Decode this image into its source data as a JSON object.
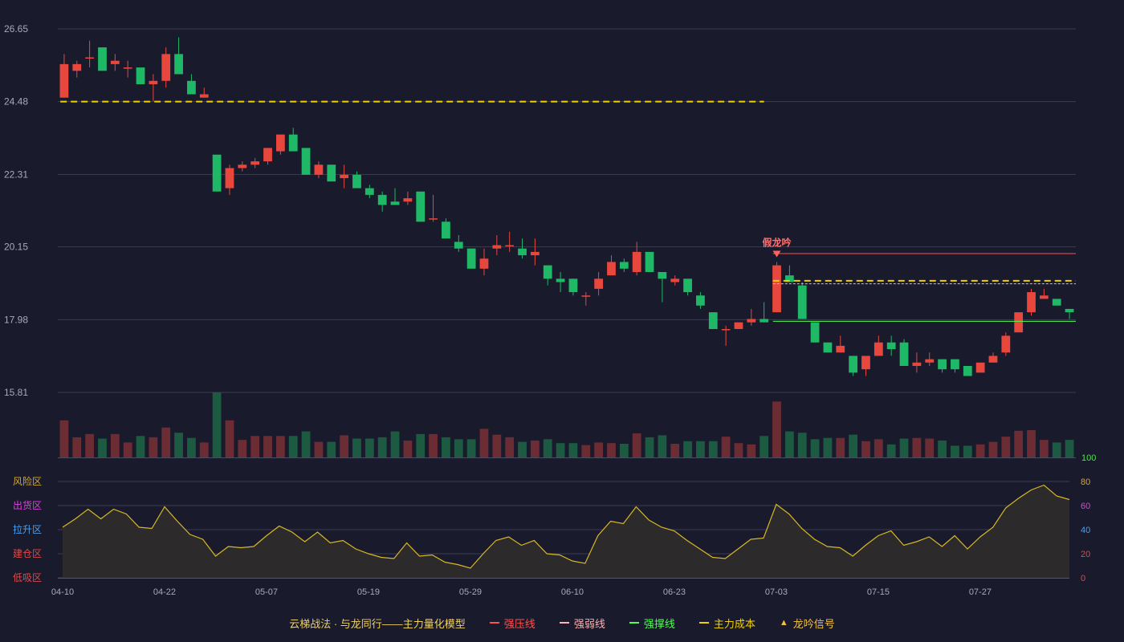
{
  "chart_data": {
    "type": "candlestick",
    "price_axis": {
      "ticks": [
        26.65,
        24.48,
        22.31,
        20.15,
        17.98,
        15.81
      ],
      "range": [
        15.81,
        26.65
      ]
    },
    "x_tick_labels": [
      {
        "i": 0,
        "label": "04-10"
      },
      {
        "i": 8,
        "label": "04-22"
      },
      {
        "i": 16,
        "label": "05-07"
      },
      {
        "i": 24,
        "label": "05-19"
      },
      {
        "i": 32,
        "label": "05-29"
      },
      {
        "i": 40,
        "label": "06-10"
      },
      {
        "i": 48,
        "label": "06-23"
      },
      {
        "i": 56,
        "label": "07-03"
      },
      {
        "i": 64,
        "label": "07-15"
      },
      {
        "i": 72,
        "label": "07-27"
      }
    ],
    "candles": [
      [
        24.6,
        25.6,
        25.9,
        24.6
      ],
      [
        25.4,
        25.6,
        25.7,
        25.2
      ],
      [
        25.8,
        25.8,
        26.3,
        25.5
      ],
      [
        26.1,
        25.4,
        26.1,
        25.4
      ],
      [
        25.6,
        25.7,
        25.9,
        25.4
      ],
      [
        25.5,
        25.5,
        25.7,
        25.2
      ],
      [
        25.5,
        25.0,
        25.5,
        25.0
      ],
      [
        25.0,
        25.1,
        25.3,
        24.5
      ],
      [
        25.1,
        25.9,
        26.1,
        24.9
      ],
      [
        25.9,
        25.3,
        26.4,
        25.3
      ],
      [
        25.1,
        24.7,
        25.3,
        24.7
      ],
      [
        24.6,
        24.7,
        24.9,
        24.6
      ],
      [
        22.9,
        21.8,
        22.9,
        21.8
      ],
      [
        21.9,
        22.5,
        22.6,
        21.7
      ],
      [
        22.5,
        22.6,
        22.7,
        22.4
      ],
      [
        22.6,
        22.7,
        22.8,
        22.5
      ],
      [
        22.7,
        23.1,
        23.1,
        22.6
      ],
      [
        23.0,
        23.5,
        23.5,
        22.9
      ],
      [
        23.5,
        23.0,
        23.7,
        23.0
      ],
      [
        23.1,
        22.3,
        23.1,
        22.3
      ],
      [
        22.3,
        22.6,
        22.7,
        22.2
      ],
      [
        22.6,
        22.1,
        22.6,
        22.1
      ],
      [
        22.2,
        22.3,
        22.6,
        21.9
      ],
      [
        22.3,
        21.9,
        22.4,
        21.9
      ],
      [
        21.9,
        21.7,
        22.0,
        21.6
      ],
      [
        21.7,
        21.4,
        21.8,
        21.2
      ],
      [
        21.5,
        21.4,
        21.9,
        21.4
      ],
      [
        21.5,
        21.6,
        21.8,
        21.4
      ],
      [
        21.8,
        20.9,
        21.8,
        20.9
      ],
      [
        21.0,
        21.0,
        21.7,
        20.9
      ],
      [
        20.9,
        20.4,
        21.0,
        20.4
      ],
      [
        20.3,
        20.1,
        20.5,
        20.0
      ],
      [
        20.1,
        19.5,
        20.1,
        19.5
      ],
      [
        19.5,
        19.8,
        20.1,
        19.3
      ],
      [
        20.1,
        20.2,
        20.5,
        19.9
      ],
      [
        20.2,
        20.2,
        20.6,
        20.0
      ],
      [
        20.1,
        19.9,
        20.4,
        19.8
      ],
      [
        19.9,
        20.0,
        20.4,
        19.6
      ],
      [
        19.6,
        19.2,
        19.6,
        19.0
      ],
      [
        19.2,
        19.1,
        19.4,
        18.8
      ],
      [
        19.2,
        18.8,
        19.2,
        18.7
      ],
      [
        18.7,
        18.7,
        18.8,
        18.4
      ],
      [
        18.9,
        19.2,
        19.4,
        18.7
      ],
      [
        19.3,
        19.7,
        19.9,
        19.3
      ],
      [
        19.7,
        19.5,
        19.8,
        19.4
      ],
      [
        19.4,
        20.0,
        20.3,
        19.3
      ],
      [
        20.0,
        19.4,
        20.0,
        19.4
      ],
      [
        19.4,
        19.2,
        19.4,
        18.5
      ],
      [
        19.1,
        19.2,
        19.3,
        19.0
      ],
      [
        19.2,
        18.8,
        19.2,
        18.7
      ],
      [
        18.7,
        18.4,
        18.8,
        18.3
      ],
      [
        18.2,
        17.7,
        18.2,
        17.7
      ],
      [
        17.7,
        17.7,
        17.8,
        17.2
      ],
      [
        17.7,
        17.9,
        17.9,
        17.7
      ],
      [
        17.9,
        18.0,
        18.3,
        17.8
      ],
      [
        18.0,
        17.9,
        18.5,
        17.9
      ],
      [
        18.2,
        19.6,
        19.7,
        18.2
      ],
      [
        19.3,
        19.1,
        19.6,
        19.1
      ],
      [
        19.0,
        18.0,
        19.1,
        18.0
      ],
      [
        17.9,
        17.3,
        17.9,
        17.3
      ],
      [
        17.3,
        17.0,
        17.3,
        17.0
      ],
      [
        17.0,
        17.2,
        17.5,
        17.0
      ],
      [
        16.9,
        16.4,
        16.9,
        16.3
      ],
      [
        16.5,
        16.9,
        16.9,
        16.3
      ],
      [
        16.9,
        17.3,
        17.5,
        16.9
      ],
      [
        17.3,
        17.1,
        17.5,
        16.9
      ],
      [
        17.3,
        16.6,
        17.4,
        16.6
      ],
      [
        16.6,
        16.7,
        17.0,
        16.4
      ],
      [
        16.7,
        16.8,
        17.0,
        16.6
      ],
      [
        16.8,
        16.5,
        16.8,
        16.4
      ],
      [
        16.8,
        16.5,
        16.8,
        16.4
      ],
      [
        16.6,
        16.3,
        16.6,
        16.3
      ],
      [
        16.4,
        16.7,
        16.7,
        16.4
      ],
      [
        16.7,
        16.9,
        17.0,
        16.7
      ],
      [
        17.0,
        17.5,
        17.6,
        16.9
      ],
      [
        17.6,
        18.2,
        18.2,
        17.6
      ],
      [
        18.2,
        18.8,
        18.9,
        18.1
      ],
      [
        18.6,
        18.7,
        18.9,
        18.6
      ],
      [
        18.6,
        18.4,
        18.6,
        18.4
      ],
      [
        18.3,
        18.2,
        18.3,
        18.0
      ]
    ],
    "volume": {
      "axis_top_label": "100",
      "values": [
        57,
        31,
        36,
        29,
        36,
        23,
        33,
        31,
        46,
        38,
        30,
        23,
        100,
        57,
        27,
        33,
        33,
        33,
        33,
        40,
        24,
        24,
        34,
        29,
        29,
        31,
        40,
        26,
        36,
        36,
        31,
        28,
        28,
        44,
        35,
        31,
        24,
        26,
        28,
        22,
        22,
        19,
        23,
        22,
        21,
        37,
        31,
        34,
        21,
        25,
        25,
        25,
        32,
        22,
        20,
        33,
        86,
        40,
        38,
        28,
        30,
        30,
        35,
        25,
        28,
        20,
        29,
        30,
        29,
        26,
        18,
        18,
        20,
        24,
        32,
        41,
        42,
        27,
        23,
        27
      ]
    },
    "zones": [
      "风险区",
      "出货区",
      "拉升区",
      "建仓区",
      "低吸区"
    ],
    "zone_colors": [
      "#d8a62a",
      "#e040e0",
      "#4aa0f0",
      "#e04848",
      "#e04848"
    ],
    "indicator_axis": {
      "ticks": [
        80,
        60,
        40,
        20,
        0
      ],
      "colors": [
        "#d8a62a",
        "#e040e0",
        "#4aa0f0",
        "#e04848",
        "#e04848"
      ]
    },
    "indicator": [
      42,
      49,
      57,
      49,
      57,
      53,
      42,
      41,
      59,
      47,
      36,
      32,
      18,
      26,
      25,
      26,
      35,
      43,
      38,
      30,
      38,
      29,
      31,
      24,
      20,
      17,
      16,
      29,
      18,
      19,
      13,
      11,
      8,
      20,
      31,
      34,
      27,
      31,
      20,
      19,
      14,
      12,
      35,
      47,
      45,
      59,
      48,
      42,
      39,
      31,
      24,
      17,
      16,
      24,
      32,
      33,
      61,
      53,
      41,
      32,
      26,
      25,
      18,
      27,
      35,
      39,
      27,
      30,
      34,
      26,
      35,
      24,
      34,
      42,
      58,
      66,
      73,
      77,
      68,
      65
    ],
    "levels": {
      "cost_early": {
        "value": 24.48,
        "from": 0,
        "to": 55
      },
      "strong_pressure": {
        "value": 19.95,
        "from": 56,
        "to": 79
      },
      "main_cost_late": {
        "value": 19.14,
        "from": 56,
        "to": 79
      },
      "weak": {
        "value": 19.05,
        "from": 56,
        "to": 79
      },
      "support": {
        "value": 17.93,
        "from": 56,
        "to": 79
      }
    },
    "signal": {
      "index": 56,
      "label": "假龙吟"
    }
  },
  "legend": {
    "title": "云梯战法 · 与龙同行——主力量化模型",
    "items": [
      {
        "label": "强压线",
        "color": "#ff5050",
        "style": "solid"
      },
      {
        "label": "强弱线",
        "color": "#ffb0b0",
        "style": "dashed"
      },
      {
        "label": "强撑线",
        "color": "#50ff50",
        "style": "solid"
      },
      {
        "label": "主力成本",
        "color": "#f0d000",
        "style": "dashed"
      },
      {
        "label": "龙吟信号",
        "color": "#f0c040",
        "style": "triangle"
      }
    ]
  },
  "colors": {
    "up": "#e8473e",
    "down": "#1fb866",
    "bg": "#191a2c",
    "grid": "#3a3c52",
    "axis_text": "#a8aab8",
    "indicator_line": "#d8b824",
    "indicator_fill": "#2e2b2c"
  }
}
